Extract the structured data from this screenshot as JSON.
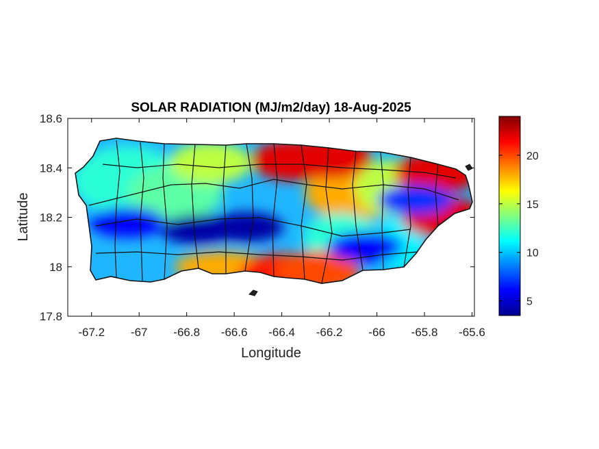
{
  "map": {
    "title": "SOLAR RADIATION (MJ/m2/day) 18-Aug-2025",
    "xlabel": "Longitude",
    "ylabel": "Latitude",
    "x_range": [
      -67.3,
      -65.59
    ],
    "y_range": [
      17.8,
      18.6
    ],
    "x_ticks": [
      "-67.2",
      "-67",
      "-66.8",
      "-66.6",
      "-66.4",
      "-66.2",
      "-66",
      "-65.8",
      "-65.6"
    ],
    "x_tick_values": [
      -67.2,
      -67.0,
      -66.8,
      -66.6,
      -66.4,
      -66.2,
      -66.0,
      -65.8,
      -65.6
    ],
    "y_ticks": [
      "18.6",
      "18.4",
      "18.2",
      "18",
      "17.8"
    ],
    "y_tick_values": [
      18.6,
      18.4,
      18.2,
      18.0,
      17.8
    ],
    "region": "Puerto Rico",
    "colormap": "jet",
    "colorbar": {
      "range": [
        3.5,
        24
      ],
      "ticks": [
        "20",
        "15",
        "10",
        "5"
      ],
      "tick_values": [
        20,
        15,
        10,
        5
      ],
      "colors": [
        "#00008f",
        "#0000ff",
        "#0080ff",
        "#00ffff",
        "#80ff80",
        "#ffff00",
        "#ff8000",
        "#ff0000",
        "#800000"
      ]
    },
    "chart_data": {
      "type": "heatmap",
      "title": "SOLAR RADIATION (MJ/m2/day) 18-Aug-2025",
      "xlabel": "Longitude",
      "ylabel": "Latitude",
      "xlim": [
        -67.3,
        -65.59
      ],
      "ylim": [
        17.8,
        18.6
      ],
      "zlim": [
        3.5,
        24
      ],
      "high_regions": [
        {
          "lon": -66.35,
          "lat": 18.43,
          "value": 22
        },
        {
          "lon": -66.2,
          "lat": 18.44,
          "value": 22
        },
        {
          "lon": -65.75,
          "lat": 18.38,
          "value": 22
        },
        {
          "lon": -65.72,
          "lat": 18.2,
          "value": 22
        },
        {
          "lon": -66.4,
          "lat": 17.97,
          "value": 21
        },
        {
          "lon": -66.25,
          "lat": 17.98,
          "value": 20
        }
      ],
      "low_regions": [
        {
          "lon": -66.75,
          "lat": 18.15,
          "value": 4
        },
        {
          "lon": -66.55,
          "lat": 18.16,
          "value": 4
        },
        {
          "lon": -67.05,
          "lat": 18.18,
          "value": 6
        },
        {
          "lon": -66.05,
          "lat": 18.08,
          "value": 6
        },
        {
          "lon": -65.84,
          "lat": 18.27,
          "value": 7
        }
      ]
    }
  }
}
